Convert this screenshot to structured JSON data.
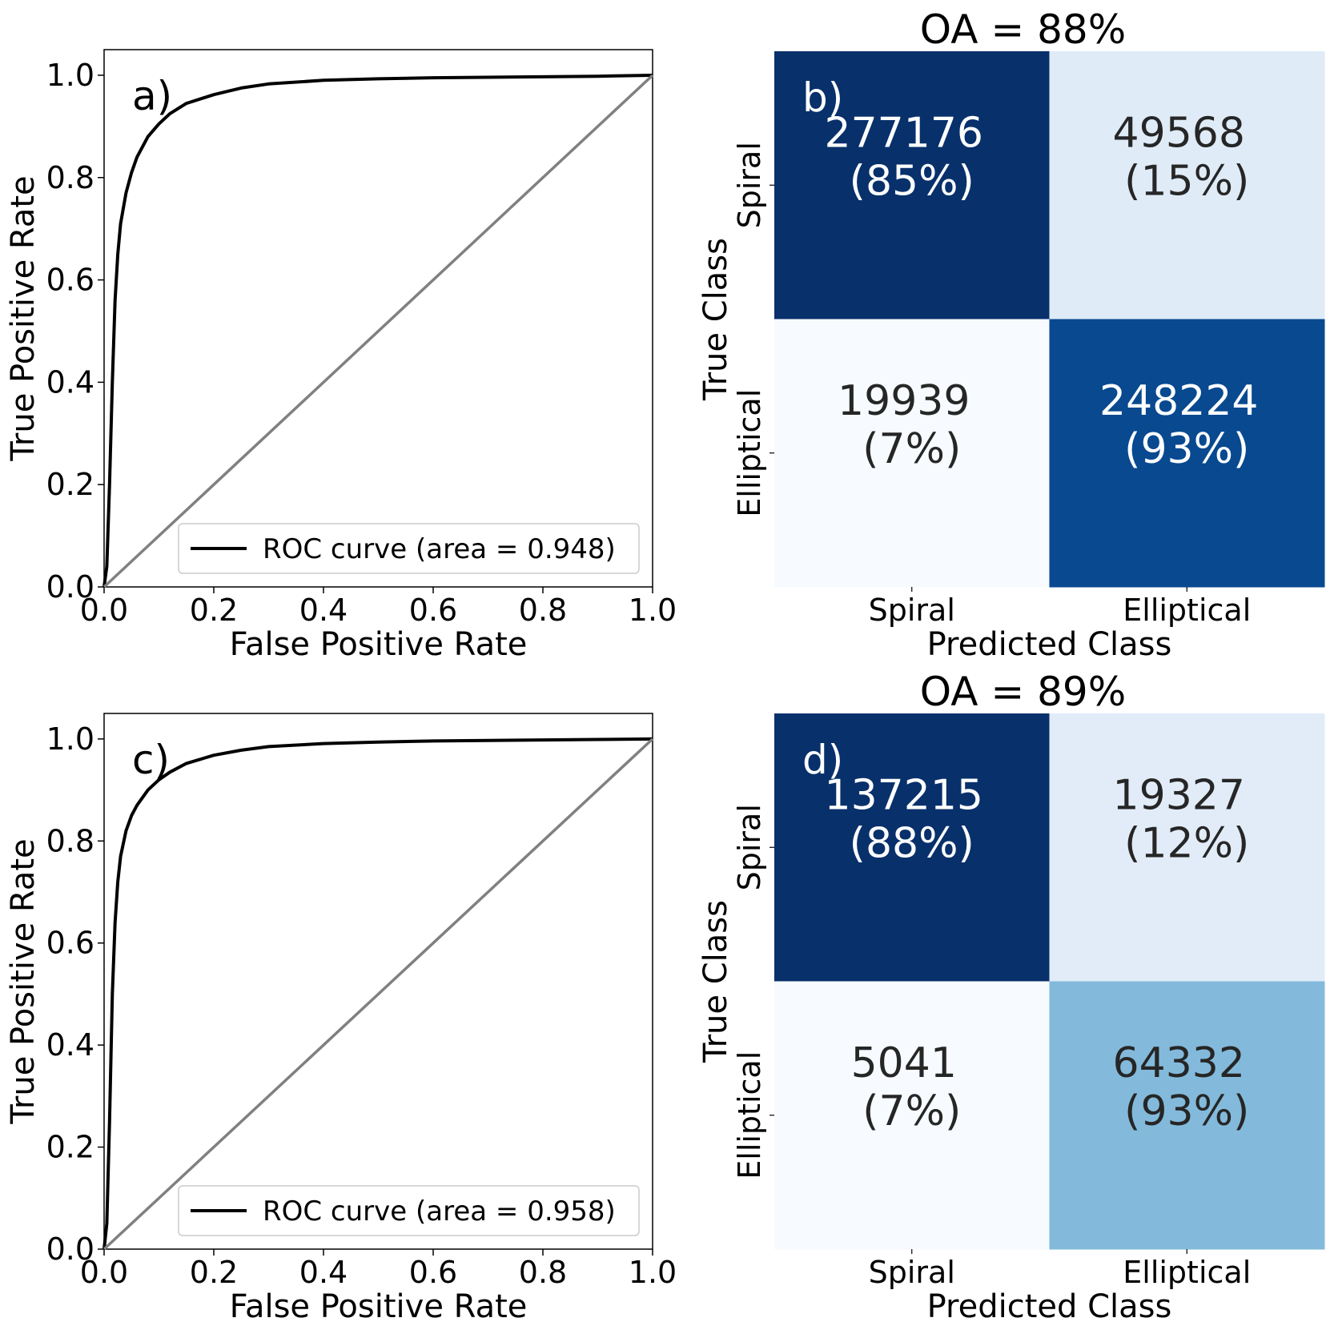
{
  "chart_data": [
    {
      "panel": "a)",
      "type": "line",
      "xlabel": "False Positive Rate",
      "ylabel": "True Positive Rate",
      "xlim": [
        0.0,
        1.0
      ],
      "ylim": [
        0.0,
        1.0
      ],
      "xticks": [
        "0.0",
        "0.2",
        "0.4",
        "0.6",
        "0.8",
        "1.0"
      ],
      "yticks": [
        "0.0",
        "0.2",
        "0.4",
        "0.6",
        "0.8",
        "1.0"
      ],
      "legend_position": "lower-right",
      "series": [
        {
          "name": "ROC curve (area = 0.948)",
          "color": "#000000",
          "x": [
            0.0,
            0.005,
            0.01,
            0.015,
            0.02,
            0.025,
            0.03,
            0.04,
            0.05,
            0.06,
            0.08,
            0.1,
            0.12,
            0.15,
            0.2,
            0.25,
            0.3,
            0.4,
            0.5,
            0.6,
            0.7,
            0.8,
            0.9,
            1.0
          ],
          "y": [
            0.0,
            0.04,
            0.2,
            0.4,
            0.56,
            0.65,
            0.71,
            0.77,
            0.81,
            0.84,
            0.88,
            0.905,
            0.925,
            0.945,
            0.962,
            0.975,
            0.983,
            0.99,
            0.993,
            0.995,
            0.996,
            0.997,
            0.998,
            1.0
          ]
        },
        {
          "name": "",
          "color": "#808080",
          "x": [
            0.0,
            1.0
          ],
          "y": [
            0.0,
            1.0
          ]
        }
      ]
    },
    {
      "panel": "b)",
      "type": "heatmap",
      "title": "OA = 88%",
      "xlabel": "Predicted Class",
      "ylabel": "True Class",
      "x_categories": [
        "Spiral",
        "Elliptical"
      ],
      "y_categories": [
        "Spiral",
        "Elliptical"
      ],
      "cells": [
        [
          {
            "count": "277176",
            "pct": "(85%)",
            "fill": "#08306b",
            "text_color": "#ffffff"
          },
          {
            "count": "49568",
            "pct": "(15%)",
            "fill": "#dfebf7",
            "text_color": "#262626"
          }
        ],
        [
          {
            "count": "19939",
            "pct": "(7%)",
            "fill": "#f7fbff",
            "text_color": "#262626"
          },
          {
            "count": "248224",
            "pct": "(93%)",
            "fill": "#084990",
            "text_color": "#ffffff"
          }
        ]
      ]
    },
    {
      "panel": "c)",
      "type": "line",
      "xlabel": "False Positive Rate",
      "ylabel": "True Positive Rate",
      "xlim": [
        0.0,
        1.0
      ],
      "ylim": [
        0.0,
        1.0
      ],
      "xticks": [
        "0.0",
        "0.2",
        "0.4",
        "0.6",
        "0.8",
        "1.0"
      ],
      "yticks": [
        "0.0",
        "0.2",
        "0.4",
        "0.6",
        "0.8",
        "1.0"
      ],
      "legend_position": "lower-right",
      "series": [
        {
          "name": "ROC curve (area = 0.958)",
          "color": "#000000",
          "x": [
            0.0,
            0.005,
            0.01,
            0.015,
            0.02,
            0.025,
            0.03,
            0.04,
            0.05,
            0.06,
            0.08,
            0.1,
            0.12,
            0.15,
            0.2,
            0.25,
            0.3,
            0.4,
            0.5,
            0.6,
            0.7,
            0.8,
            0.9,
            1.0
          ],
          "y": [
            0.0,
            0.05,
            0.25,
            0.5,
            0.64,
            0.72,
            0.77,
            0.82,
            0.85,
            0.87,
            0.9,
            0.92,
            0.935,
            0.952,
            0.968,
            0.978,
            0.985,
            0.991,
            0.994,
            0.996,
            0.997,
            0.998,
            0.999,
            1.0
          ]
        },
        {
          "name": "",
          "color": "#808080",
          "x": [
            0.0,
            1.0
          ],
          "y": [
            0.0,
            1.0
          ]
        }
      ]
    },
    {
      "panel": "d)",
      "type": "heatmap",
      "title": "OA = 89%",
      "xlabel": "Predicted Class",
      "ylabel": "True Class",
      "x_categories": [
        "Spiral",
        "Elliptical"
      ],
      "y_categories": [
        "Spiral",
        "Elliptical"
      ],
      "cells": [
        [
          {
            "count": "137215",
            "pct": "(88%)",
            "fill": "#08306b",
            "text_color": "#ffffff"
          },
          {
            "count": "19327",
            "pct": "(12%)",
            "fill": "#e1ecf8",
            "text_color": "#262626"
          }
        ],
        [
          {
            "count": "5041",
            "pct": "(7%)",
            "fill": "#f7fbff",
            "text_color": "#262626"
          },
          {
            "count": "64332",
            "pct": "(93%)",
            "fill": "#83badb",
            "text_color": "#262626"
          }
        ]
      ]
    }
  ]
}
